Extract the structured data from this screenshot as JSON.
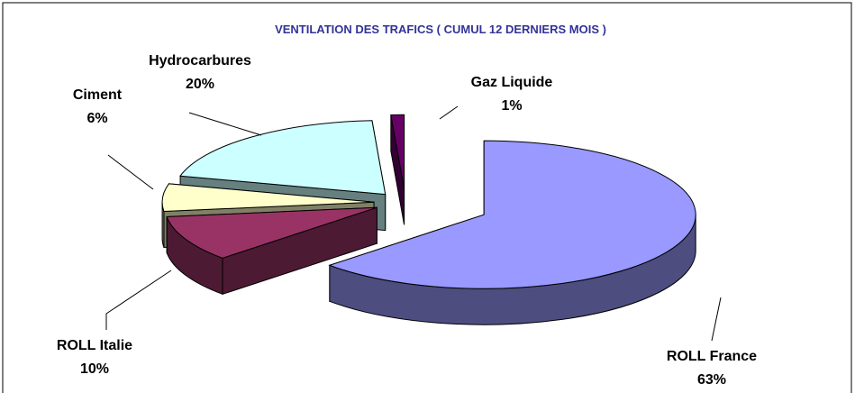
{
  "chart_data": {
    "type": "pie",
    "title": "VENTILATION DES TRAFICS ( CUMUL 12 DERNIERS MOIS )",
    "categories": [
      "ROLL France",
      "ROLL Italie",
      "Ciment",
      "Hydrocarbures",
      "Gaz Liquide"
    ],
    "values": [
      63,
      10,
      6,
      20,
      1
    ],
    "value_labels": [
      "63%",
      "10%",
      "6%",
      "20%",
      "1%"
    ],
    "colors": [
      "#9999ff",
      "#993366",
      "#ffffcc",
      "#ccffff",
      "#660066"
    ]
  }
}
